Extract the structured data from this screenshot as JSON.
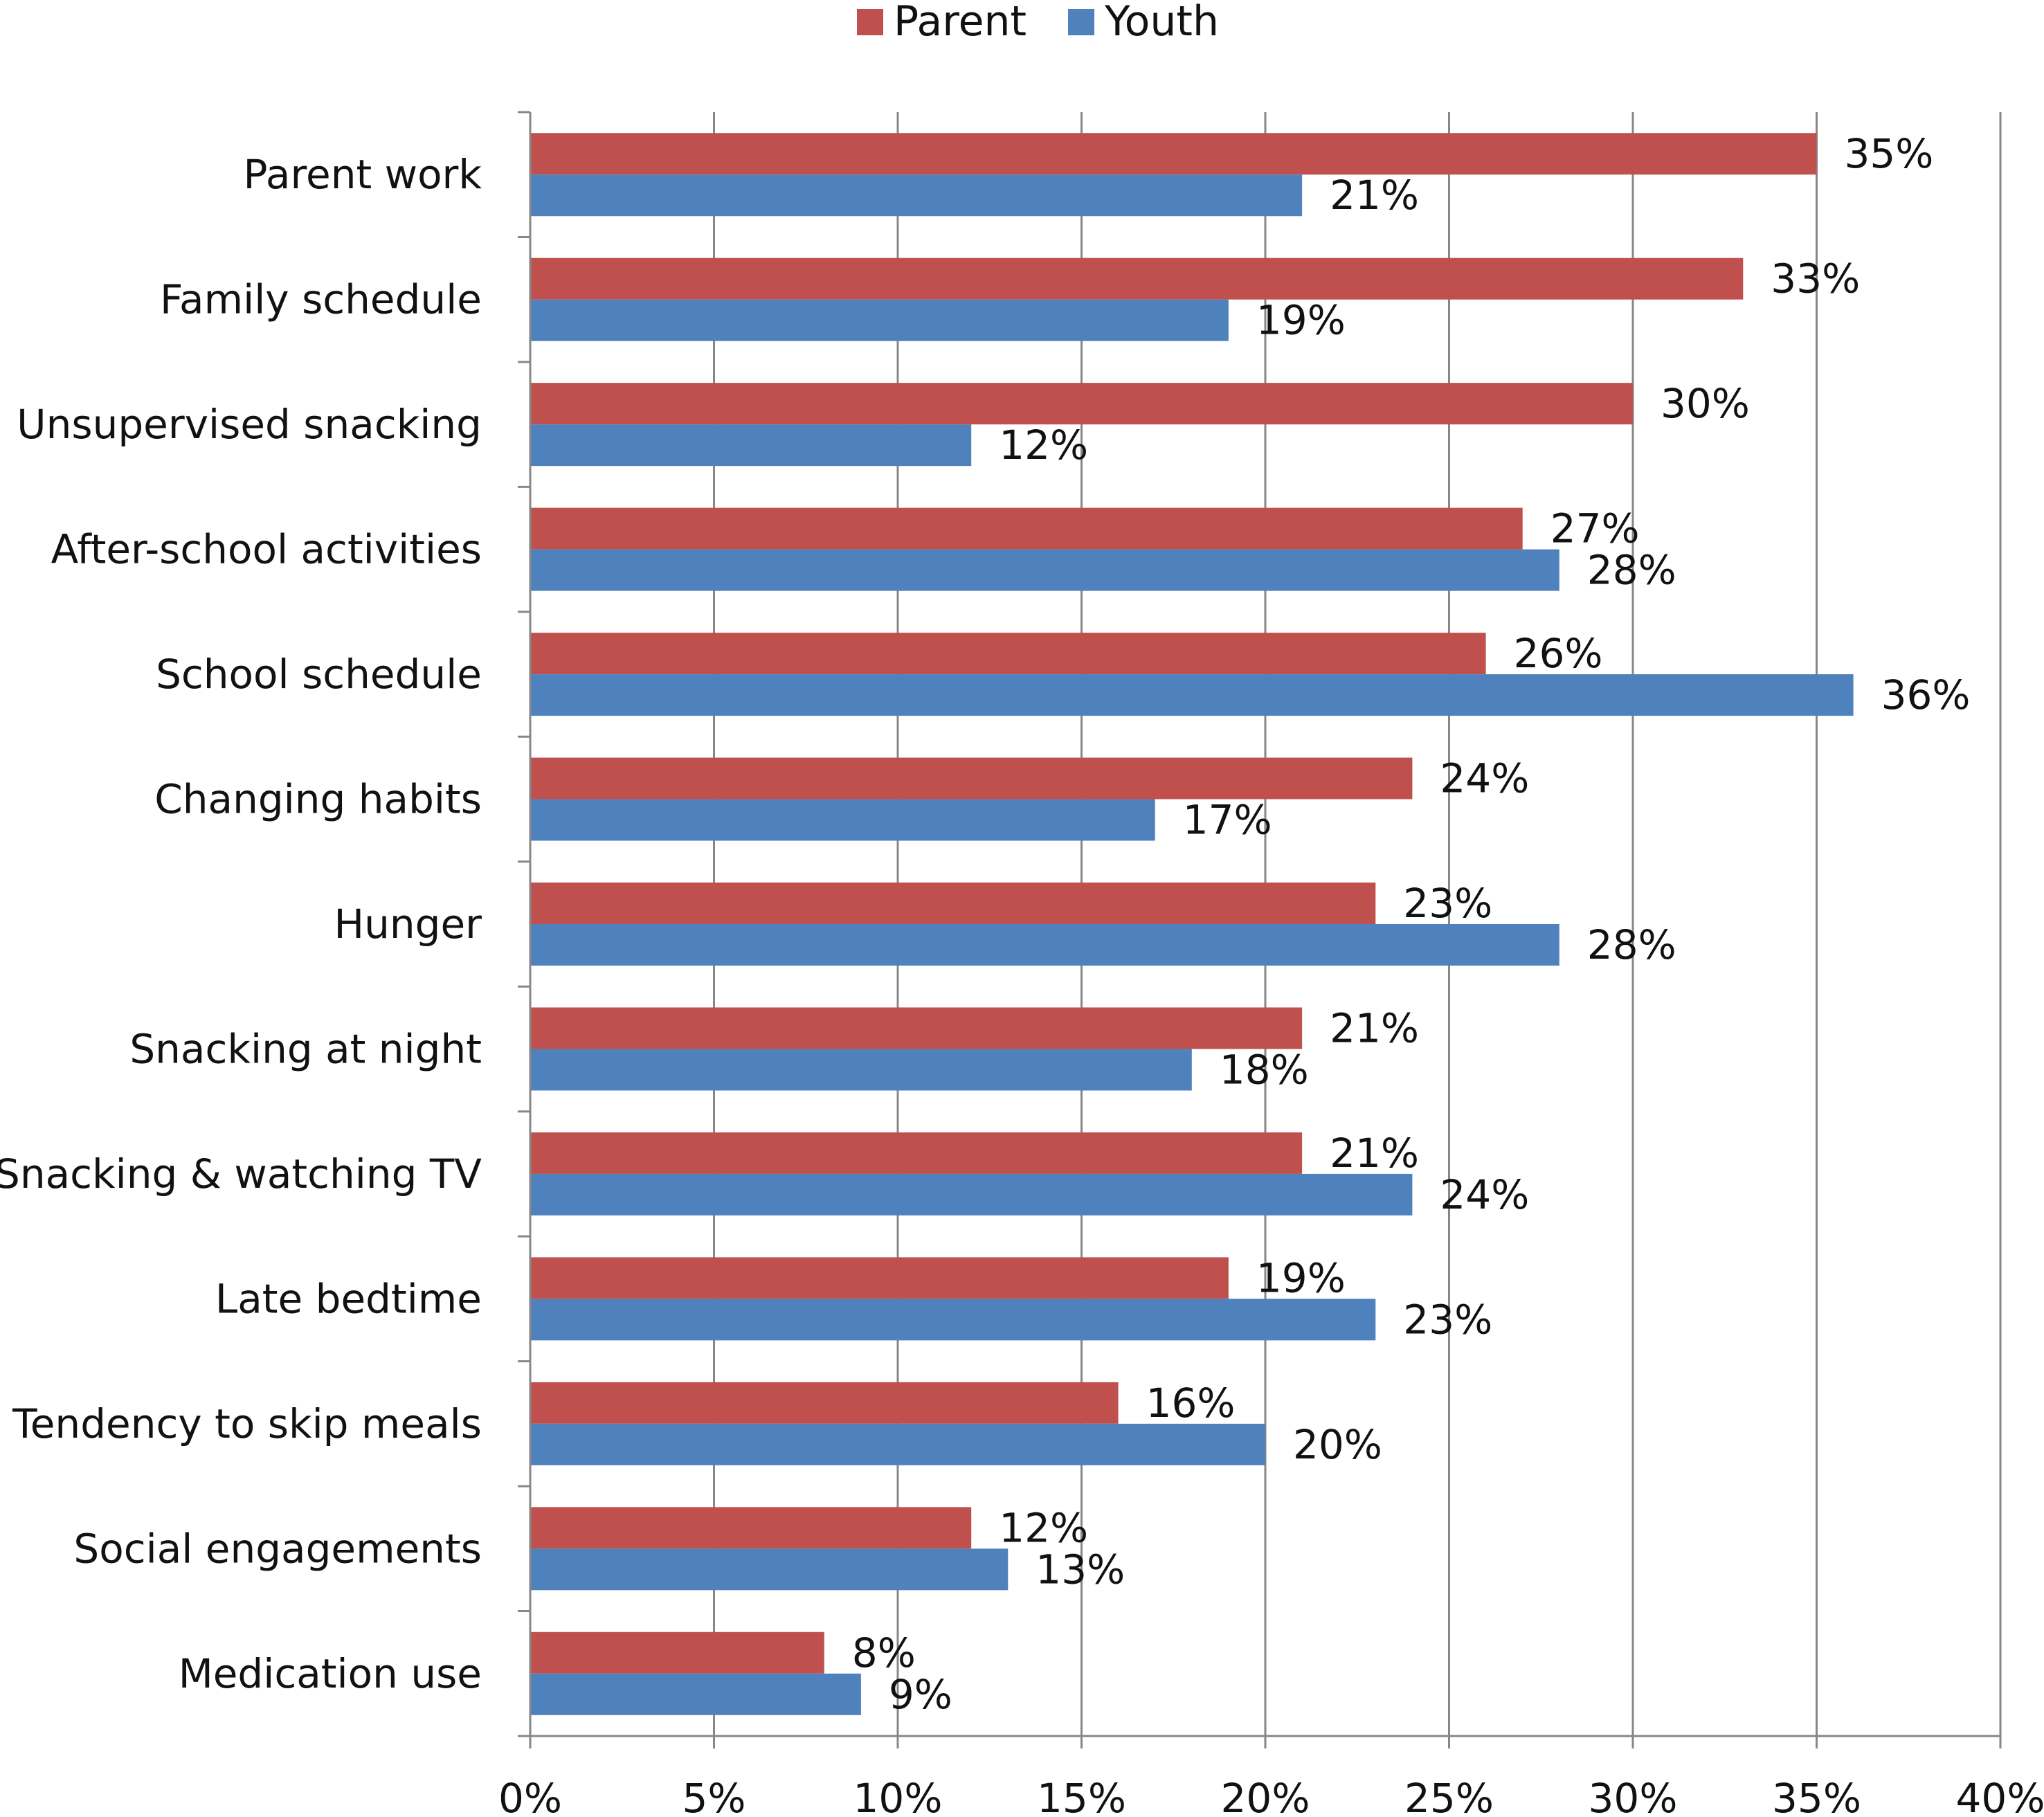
{
  "chart_data": {
    "type": "bar",
    "orientation": "horizontal",
    "title": "",
    "xlabel": "",
    "ylabel": "",
    "xlim": [
      0,
      40
    ],
    "x_ticks": [
      "0%",
      "5%",
      "10%",
      "15%",
      "20%",
      "25%",
      "30%",
      "35%",
      "40%"
    ],
    "x_tick_values": [
      0,
      5,
      10,
      15,
      20,
      25,
      30,
      35,
      40
    ],
    "grid": "vertical major gridlines",
    "legend": {
      "position": "top-center",
      "entries": [
        "Parent",
        "Youth"
      ]
    },
    "categories": [
      "Parent work",
      "Family schedule",
      "Unsupervised snacking",
      "After-school activities",
      "School schedule",
      "Changing habits",
      "Hunger",
      "Snacking at night",
      "Snacking & watching TV",
      "Late bedtime",
      "Tendency to skip meals",
      "Social engagements",
      "Medication use"
    ],
    "series": [
      {
        "name": "Parent",
        "color": "#c0504d",
        "values": [
          35,
          33,
          30,
          27,
          26,
          24,
          23,
          21,
          21,
          19,
          16,
          12,
          8
        ],
        "labels": [
          "35%",
          "33%",
          "30%",
          "27%",
          "26%",
          "24%",
          "23%",
          "21%",
          "21%",
          "19%",
          "16%",
          "12%",
          "8%"
        ]
      },
      {
        "name": "Youth",
        "color": "#4f81bd",
        "values": [
          21,
          19,
          12,
          28,
          36,
          17,
          28,
          18,
          24,
          23,
          20,
          13,
          9
        ],
        "labels": [
          "21%",
          "19%",
          "12%",
          "28%",
          "36%",
          "17%",
          "28%",
          "18%",
          "24%",
          "23%",
          "20%",
          "13%",
          "9%"
        ]
      }
    ]
  },
  "colors": {
    "grid": "#878787",
    "axis": "#878787"
  }
}
